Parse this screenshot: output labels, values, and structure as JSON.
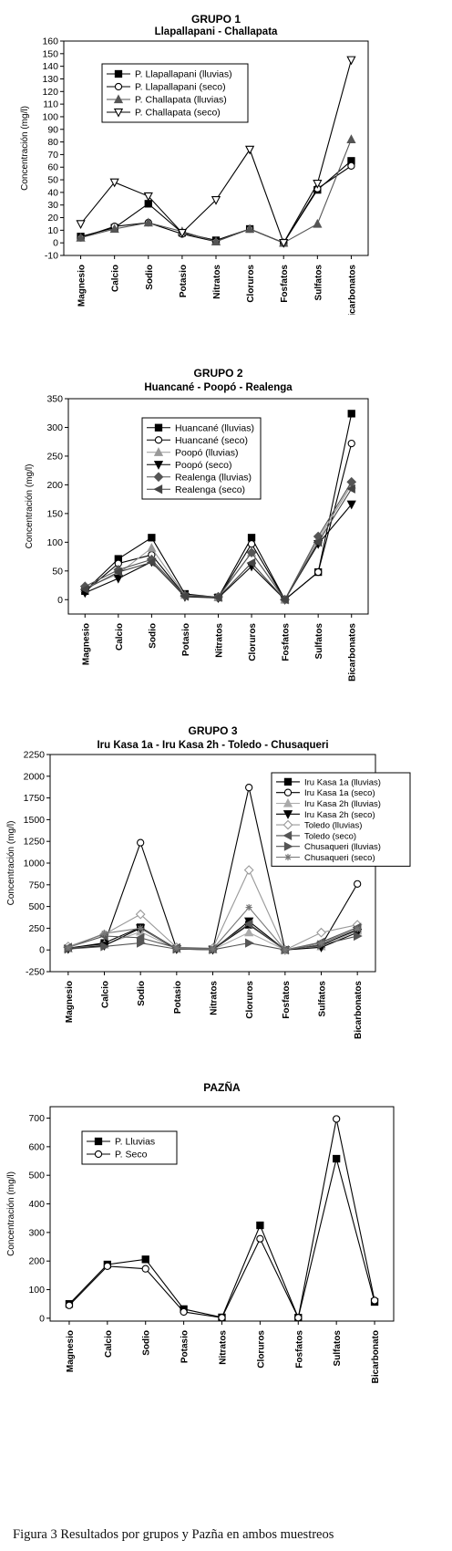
{
  "caption": "Figura 3 Resultados por grupos y Pazña en ambos muestreos",
  "chart_data": [
    {
      "type": "line",
      "title": "GRUPO 1",
      "subtitle": "Llapallapani - Challapata",
      "ylabel": "Concentración (mg/l)",
      "xlabel": "",
      "ylim": [
        -10,
        160
      ],
      "yticks": [
        -10,
        0,
        10,
        20,
        30,
        40,
        50,
        60,
        70,
        80,
        90,
        100,
        110,
        120,
        130,
        140,
        150,
        160
      ],
      "categories": [
        "Magnesio",
        "Calcio",
        "Sodio",
        "Potasio",
        "Nitratos",
        "Cloruros",
        "Fosfatos",
        "Sulfatos",
        "Bicarbonatos"
      ],
      "legend_position": "top-left",
      "grid": false,
      "series": [
        {
          "name": "P. Llapallapani (lluvias)",
          "marker": "square",
          "color": "#000000",
          "values": [
            5,
            12,
            31,
            8,
            2,
            11,
            0,
            42,
            65
          ]
        },
        {
          "name": "P. Llapallapani (seco)",
          "marker": "circle-open",
          "color": "#000000",
          "values": [
            4,
            13,
            16,
            7,
            1,
            11,
            0,
            43,
            61
          ]
        },
        {
          "name": "P. Challapata (lluvias)",
          "marker": "triangle-up",
          "color": "#555555",
          "values": [
            4,
            11,
            16,
            9,
            1,
            11,
            0,
            15,
            82
          ]
        },
        {
          "name": "P. Challapata (seco)",
          "marker": "triangle-down-open",
          "color": "#000000",
          "values": [
            15,
            48,
            37,
            8,
            34,
            74,
            0,
            47,
            145
          ]
        }
      ]
    },
    {
      "type": "line",
      "title": "GRUPO 2",
      "subtitle": "Huancané - Poopó - Realenga",
      "ylabel": "Concentración (mg/l)",
      "xlabel": "",
      "ylim": [
        -25,
        350
      ],
      "yticks": [
        0,
        50,
        100,
        150,
        200,
        250,
        300,
        350
      ],
      "categories": [
        "Magnesio",
        "Calcio",
        "Sodio",
        "Potasio",
        "Nitratos",
        "Cloruros",
        "Fosfatos",
        "Sulfatos",
        "Bicarbonatos"
      ],
      "legend_position": "top-left",
      "grid": false,
      "series": [
        {
          "name": "Huancané (lluvias)",
          "marker": "square",
          "color": "#000000",
          "values": [
            15,
            71,
            108,
            10,
            4,
            108,
            0,
            48,
            324
          ]
        },
        {
          "name": "Huancané (seco)",
          "marker": "circle-open",
          "color": "#000000",
          "values": [
            14,
            63,
            78,
            7,
            3,
            97,
            0,
            48,
            272
          ]
        },
        {
          "name": "Poopó (lluvias)",
          "marker": "triangle-up",
          "color": "#999999",
          "values": [
            20,
            45,
            90,
            8,
            4,
            82,
            0,
            105,
            200
          ]
        },
        {
          "name": "Poopó (seco)",
          "marker": "triangle-down",
          "color": "#000000",
          "values": [
            12,
            37,
            66,
            5,
            3,
            58,
            0,
            97,
            166
          ]
        },
        {
          "name": "Realenga (lluvias)",
          "marker": "diamond",
          "color": "#555555",
          "values": [
            23,
            52,
            70,
            7,
            5,
            82,
            0,
            110,
            205
          ]
        },
        {
          "name": "Realenga (seco)",
          "marker": "triangle-left",
          "color": "#444444",
          "values": [
            18,
            48,
            65,
            6,
            4,
            64,
            0,
            100,
            193
          ]
        }
      ]
    },
    {
      "type": "line",
      "title": "GRUPO 3",
      "subtitle": "Iru Kasa 1a - Iru Kasa 2h - Toledo - Chusaqueri",
      "ylabel": "Concentración (mg/l)",
      "xlabel": "",
      "ylim": [
        -250,
        2250
      ],
      "yticks": [
        -250,
        0,
        250,
        500,
        750,
        1000,
        1250,
        1500,
        1750,
        2000,
        2250
      ],
      "categories": [
        "Magnesio",
        "Calcio",
        "Sodio",
        "Potasio",
        "Nitratos",
        "Cloruros",
        "Fosfatos",
        "Sulfatos",
        "Bicarbonatos"
      ],
      "legend_position": "top-right",
      "grid": false,
      "series": [
        {
          "name": "Iru Kasa 1a (lluvias)",
          "marker": "square",
          "color": "#000000",
          "values": [
            20,
            80,
            260,
            15,
            5,
            290,
            0,
            60,
            230
          ]
        },
        {
          "name": "Iru Kasa 1a (seco)",
          "marker": "circle-open",
          "color": "#000000",
          "values": [
            18,
            70,
            1235,
            12,
            4,
            1870,
            0,
            50,
            760
          ]
        },
        {
          "name": "Iru Kasa 2h (lluvias)",
          "marker": "triangle-up",
          "color": "#aaaaaa",
          "values": [
            15,
            60,
            210,
            10,
            4,
            200,
            0,
            40,
            220
          ]
        },
        {
          "name": "Iru Kasa 2h (seco)",
          "marker": "triangle-down",
          "color": "#000000",
          "values": [
            12,
            50,
            250,
            10,
            3,
            330,
            0,
            30,
            200
          ]
        },
        {
          "name": "Toledo (lluvias)",
          "marker": "diamond-open",
          "color": "#999999",
          "values": [
            40,
            180,
            410,
            30,
            20,
            920,
            0,
            200,
            290
          ]
        },
        {
          "name": "Toledo (seco)",
          "marker": "triangle-left",
          "color": "#555555",
          "values": [
            30,
            160,
            140,
            25,
            15,
            300,
            0,
            90,
            260
          ]
        },
        {
          "name": "Chusaqueri (lluvias)",
          "marker": "triangle-right",
          "color": "#555555",
          "values": [
            10,
            40,
            80,
            10,
            3,
            80,
            0,
            60,
            160
          ]
        },
        {
          "name": "Chusaqueri (seco)",
          "marker": "star",
          "color": "#777777",
          "values": [
            25,
            190,
            250,
            20,
            10,
            490,
            0,
            80,
            240
          ]
        }
      ]
    },
    {
      "type": "line",
      "title": "PAZÑA",
      "subtitle": "",
      "ylabel": "Concentración (mg/l)",
      "xlabel": "",
      "ylim": [
        -10,
        740
      ],
      "yticks": [
        0,
        100,
        200,
        300,
        400,
        500,
        600,
        700
      ],
      "categories": [
        "Magnesio",
        "Calcio",
        "Sodio",
        "Potasio",
        "Nitratos",
        "Cloruros",
        "Fosfatos",
        "Sulfatos",
        "Bicarbonato"
      ],
      "legend_position": "top-left",
      "grid": false,
      "series": [
        {
          "name": "P. Lluvias",
          "marker": "square",
          "color": "#000000",
          "values": [
            50,
            188,
            206,
            32,
            3,
            325,
            2,
            558,
            57
          ]
        },
        {
          "name": "P. Seco",
          "marker": "circle-open",
          "color": "#000000",
          "values": [
            45,
            182,
            173,
            22,
            2,
            278,
            2,
            697,
            62
          ]
        }
      ]
    }
  ]
}
